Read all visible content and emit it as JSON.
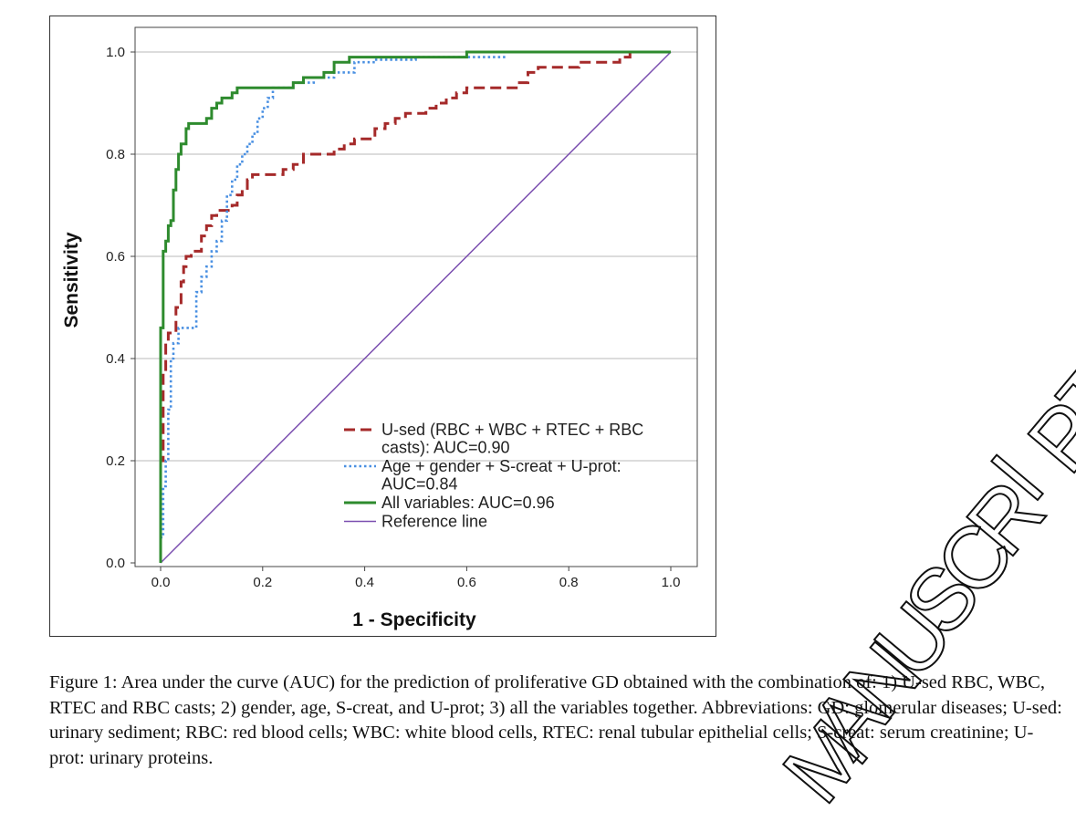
{
  "chart_data": {
    "type": "line",
    "title": "",
    "xlabel": "1 - Specificity",
    "ylabel": "Sensitivity",
    "xlim": [
      0.0,
      1.0
    ],
    "ylim": [
      0.0,
      1.0
    ],
    "x_ticks": [
      "0.0",
      "0.2",
      "0.4",
      "0.6",
      "0.8",
      "1.0"
    ],
    "y_ticks": [
      "0.0",
      "0.2",
      "0.4",
      "0.6",
      "0.8",
      "1.0"
    ],
    "grid": "horizontal",
    "legend_position": "bottom-right",
    "series": [
      {
        "name": "U-sed (RBC + WBC + RTEC + RBC casts): AUC=0.90",
        "legend_lines": [
          "U-sed (RBC + WBC + RTEC + RBC",
          "casts): AUC=0.90"
        ],
        "color": "#a52a2a",
        "style": "dashed",
        "points": [
          [
            0.0,
            0.0
          ],
          [
            0.0,
            0.2
          ],
          [
            0.005,
            0.2
          ],
          [
            0.005,
            0.37
          ],
          [
            0.01,
            0.37
          ],
          [
            0.01,
            0.43
          ],
          [
            0.015,
            0.43
          ],
          [
            0.015,
            0.45
          ],
          [
            0.03,
            0.45
          ],
          [
            0.03,
            0.5
          ],
          [
            0.04,
            0.5
          ],
          [
            0.04,
            0.55
          ],
          [
            0.045,
            0.55
          ],
          [
            0.045,
            0.58
          ],
          [
            0.05,
            0.58
          ],
          [
            0.05,
            0.6
          ],
          [
            0.06,
            0.6
          ],
          [
            0.06,
            0.61
          ],
          [
            0.08,
            0.61
          ],
          [
            0.08,
            0.64
          ],
          [
            0.09,
            0.64
          ],
          [
            0.09,
            0.66
          ],
          [
            0.1,
            0.66
          ],
          [
            0.1,
            0.68
          ],
          [
            0.11,
            0.68
          ],
          [
            0.11,
            0.69
          ],
          [
            0.14,
            0.69
          ],
          [
            0.14,
            0.7
          ],
          [
            0.15,
            0.7
          ],
          [
            0.15,
            0.72
          ],
          [
            0.16,
            0.72
          ],
          [
            0.16,
            0.73
          ],
          [
            0.17,
            0.73
          ],
          [
            0.17,
            0.75
          ],
          [
            0.18,
            0.75
          ],
          [
            0.18,
            0.76
          ],
          [
            0.24,
            0.76
          ],
          [
            0.24,
            0.77
          ],
          [
            0.26,
            0.77
          ],
          [
            0.26,
            0.78
          ],
          [
            0.28,
            0.78
          ],
          [
            0.28,
            0.8
          ],
          [
            0.34,
            0.8
          ],
          [
            0.34,
            0.81
          ],
          [
            0.36,
            0.81
          ],
          [
            0.36,
            0.82
          ],
          [
            0.38,
            0.82
          ],
          [
            0.38,
            0.83
          ],
          [
            0.42,
            0.83
          ],
          [
            0.42,
            0.85
          ],
          [
            0.44,
            0.85
          ],
          [
            0.44,
            0.86
          ],
          [
            0.46,
            0.86
          ],
          [
            0.46,
            0.87
          ],
          [
            0.48,
            0.87
          ],
          [
            0.48,
            0.88
          ],
          [
            0.52,
            0.88
          ],
          [
            0.52,
            0.89
          ],
          [
            0.54,
            0.89
          ],
          [
            0.54,
            0.9
          ],
          [
            0.56,
            0.9
          ],
          [
            0.56,
            0.91
          ],
          [
            0.58,
            0.91
          ],
          [
            0.58,
            0.92
          ],
          [
            0.6,
            0.92
          ],
          [
            0.6,
            0.93
          ],
          [
            0.7,
            0.93
          ],
          [
            0.7,
            0.94
          ],
          [
            0.72,
            0.94
          ],
          [
            0.72,
            0.96
          ],
          [
            0.74,
            0.96
          ],
          [
            0.74,
            0.97
          ],
          [
            0.82,
            0.97
          ],
          [
            0.82,
            0.98
          ],
          [
            0.9,
            0.98
          ],
          [
            0.9,
            0.99
          ],
          [
            0.92,
            0.99
          ],
          [
            0.92,
            1.0
          ],
          [
            1.0,
            1.0
          ]
        ]
      },
      {
        "name": "Age + gender + S-creat + U-prot: AUC=0.84",
        "legend_lines": [
          "Age + gender + S-creat + U-prot:",
          "AUC=0.84"
        ],
        "color": "#4a90e2",
        "style": "dotted",
        "points": [
          [
            0.0,
            0.0
          ],
          [
            0.0,
            0.05
          ],
          [
            0.005,
            0.05
          ],
          [
            0.005,
            0.15
          ],
          [
            0.01,
            0.15
          ],
          [
            0.01,
            0.2
          ],
          [
            0.015,
            0.2
          ],
          [
            0.015,
            0.3
          ],
          [
            0.02,
            0.3
          ],
          [
            0.02,
            0.4
          ],
          [
            0.025,
            0.4
          ],
          [
            0.025,
            0.43
          ],
          [
            0.035,
            0.43
          ],
          [
            0.035,
            0.46
          ],
          [
            0.07,
            0.46
          ],
          [
            0.07,
            0.53
          ],
          [
            0.08,
            0.53
          ],
          [
            0.08,
            0.56
          ],
          [
            0.09,
            0.56
          ],
          [
            0.09,
            0.58
          ],
          [
            0.1,
            0.58
          ],
          [
            0.1,
            0.61
          ],
          [
            0.11,
            0.61
          ],
          [
            0.11,
            0.63
          ],
          [
            0.12,
            0.63
          ],
          [
            0.12,
            0.67
          ],
          [
            0.13,
            0.67
          ],
          [
            0.13,
            0.72
          ],
          [
            0.14,
            0.72
          ],
          [
            0.14,
            0.75
          ],
          [
            0.15,
            0.75
          ],
          [
            0.15,
            0.78
          ],
          [
            0.16,
            0.78
          ],
          [
            0.16,
            0.8
          ],
          [
            0.17,
            0.8
          ],
          [
            0.17,
            0.82
          ],
          [
            0.18,
            0.82
          ],
          [
            0.18,
            0.84
          ],
          [
            0.19,
            0.84
          ],
          [
            0.19,
            0.87
          ],
          [
            0.2,
            0.87
          ],
          [
            0.2,
            0.89
          ],
          [
            0.21,
            0.89
          ],
          [
            0.21,
            0.91
          ],
          [
            0.22,
            0.91
          ],
          [
            0.22,
            0.93
          ],
          [
            0.26,
            0.93
          ],
          [
            0.26,
            0.94
          ],
          [
            0.3,
            0.94
          ],
          [
            0.3,
            0.95
          ],
          [
            0.34,
            0.95
          ],
          [
            0.34,
            0.96
          ],
          [
            0.38,
            0.96
          ],
          [
            0.38,
            0.98
          ],
          [
            0.42,
            0.98
          ],
          [
            0.42,
            0.985
          ],
          [
            0.5,
            0.985
          ],
          [
            0.5,
            0.99
          ],
          [
            0.68,
            0.99
          ]
        ]
      },
      {
        "name": "All variables: AUC=0.96",
        "legend_lines": [
          "All variables: AUC=0.96"
        ],
        "color": "#2e8b2e",
        "style": "solid",
        "points": [
          [
            0.0,
            0.0
          ],
          [
            0.0,
            0.46
          ],
          [
            0.005,
            0.46
          ],
          [
            0.005,
            0.61
          ],
          [
            0.01,
            0.61
          ],
          [
            0.01,
            0.63
          ],
          [
            0.015,
            0.63
          ],
          [
            0.015,
            0.66
          ],
          [
            0.02,
            0.66
          ],
          [
            0.02,
            0.67
          ],
          [
            0.025,
            0.67
          ],
          [
            0.025,
            0.73
          ],
          [
            0.03,
            0.73
          ],
          [
            0.03,
            0.77
          ],
          [
            0.035,
            0.77
          ],
          [
            0.035,
            0.8
          ],
          [
            0.04,
            0.8
          ],
          [
            0.04,
            0.82
          ],
          [
            0.05,
            0.82
          ],
          [
            0.05,
            0.85
          ],
          [
            0.055,
            0.85
          ],
          [
            0.055,
            0.86
          ],
          [
            0.09,
            0.86
          ],
          [
            0.09,
            0.87
          ],
          [
            0.1,
            0.87
          ],
          [
            0.1,
            0.89
          ],
          [
            0.11,
            0.89
          ],
          [
            0.11,
            0.9
          ],
          [
            0.12,
            0.9
          ],
          [
            0.12,
            0.91
          ],
          [
            0.14,
            0.91
          ],
          [
            0.14,
            0.92
          ],
          [
            0.15,
            0.92
          ],
          [
            0.15,
            0.93
          ],
          [
            0.26,
            0.93
          ],
          [
            0.26,
            0.94
          ],
          [
            0.28,
            0.94
          ],
          [
            0.28,
            0.95
          ],
          [
            0.32,
            0.95
          ],
          [
            0.32,
            0.96
          ],
          [
            0.34,
            0.96
          ],
          [
            0.34,
            0.98
          ],
          [
            0.37,
            0.98
          ],
          [
            0.37,
            0.99
          ],
          [
            0.6,
            0.99
          ],
          [
            0.6,
            1.0
          ],
          [
            1.0,
            1.0
          ]
        ]
      },
      {
        "name": "Reference line",
        "legend_lines": [
          "Reference line"
        ],
        "color": "#7b4fb0",
        "style": "solid",
        "points": [
          [
            0.0,
            0.0
          ],
          [
            1.0,
            1.0
          ]
        ]
      }
    ]
  },
  "caption": "Figure 1: Area under the curve (AUC) for the prediction of proliferative GD obtained with the combination of: 1) U-sed RBC, WBC, RTEC and RBC casts; 2) gender, age, S-creat, and U-prot; 3) all the variables together. Abbreviations: GD: glomerular diseases; U-sed: urinary sediment; RBC: red blood cells; WBC: white blood cells, RTEC: renal tubular epithelial cells; S-creat: serum creatinine; U-prot: urinary proteins.",
  "watermark": "MANUSCRIPT"
}
